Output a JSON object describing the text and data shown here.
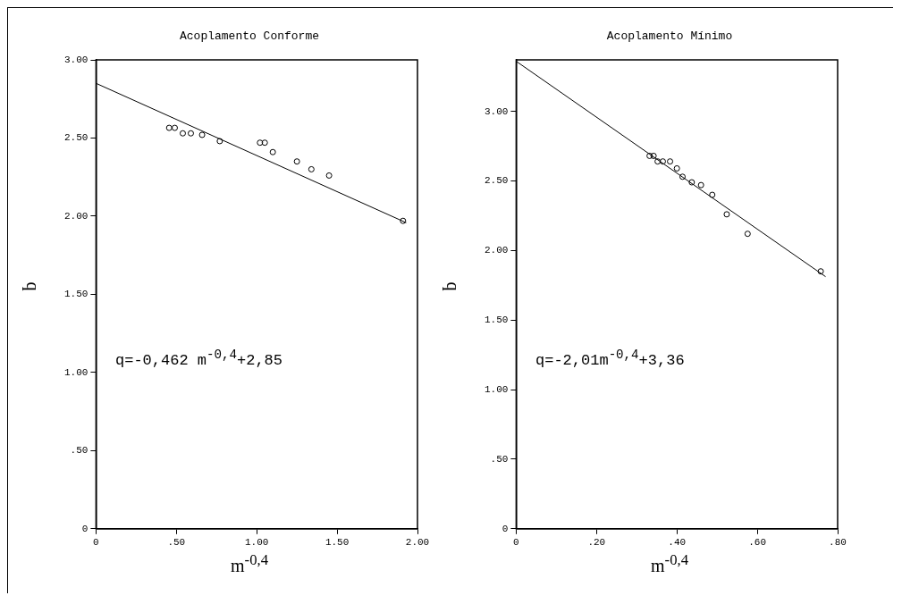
{
  "chart_data": [
    {
      "type": "scatter",
      "title": "Acoplamento Conforme",
      "xlabel": "m$^{-0,4}$",
      "ylabel": "q",
      "annotations": [
        "q=-0,462 m$^{-0,4}$+2,85"
      ],
      "xlim": [
        0,
        2
      ],
      "ylim": [
        0,
        3
      ],
      "xticks": [
        {
          "value": 0,
          "label": "0"
        },
        {
          "value": 0.5,
          "label": ".50"
        },
        {
          "value": 1,
          "label": "1.00"
        },
        {
          "value": 1.5,
          "label": "1.50"
        },
        {
          "value": 2,
          "label": "2.00"
        }
      ],
      "yticks": [
        {
          "value": 0,
          "label": "0"
        },
        {
          "value": 0.5,
          "label": ".50"
        },
        {
          "value": 1,
          "label": "1.00"
        },
        {
          "value": 1.5,
          "label": "1.50"
        },
        {
          "value": 2,
          "label": "2.00"
        },
        {
          "value": 2.5,
          "label": "2.50"
        },
        {
          "value": 3,
          "label": "3.00"
        }
      ],
      "series": [
        {
          "color": "#000000",
          "marker": "circle",
          "x": [
            0.455,
            0.49,
            0.54,
            0.59,
            0.66,
            0.77,
            1.02,
            1.05,
            1.1,
            1.25,
            1.34,
            1.45,
            1.91
          ],
          "values": [
            2.565,
            2.565,
            2.53,
            2.53,
            2.52,
            2.48,
            2.47,
            2.47,
            2.41,
            2.35,
            2.3,
            2.26,
            1.97
          ]
        },
        {
          "type": "line",
          "color": "#000000",
          "marker": "none",
          "x": [
            0,
            1.93
          ],
          "values": [
            2.85,
            1.958
          ]
        }
      ]
    },
    {
      "type": "scatter",
      "title": "Acoplamento Mínimo",
      "xlabel": "m$^{-0,4}$",
      "ylabel": "q",
      "annotations": [
        "q=-2,01m$^{-0,4}$+3,36"
      ],
      "xlim": [
        0,
        0.8
      ],
      "ylim": [
        0,
        3.37
      ],
      "xticks": [
        {
          "value": 0,
          "label": "0"
        },
        {
          "value": 0.2,
          "label": ".20"
        },
        {
          "value": 0.4,
          "label": ".40"
        },
        {
          "value": 0.6,
          "label": ".60"
        },
        {
          "value": 0.8,
          "label": ".80"
        }
      ],
      "yticks": [
        {
          "value": 0,
          "label": "0"
        },
        {
          "value": 0.5,
          "label": ".50"
        },
        {
          "value": 1,
          "label": "1.00"
        },
        {
          "value": 1.5,
          "label": "1.50"
        },
        {
          "value": 2,
          "label": "2.00"
        },
        {
          "value": 2.5,
          "label": "2.50"
        },
        {
          "value": 3,
          "label": "3.00"
        }
      ],
      "series": [
        {
          "color": "#000000",
          "marker": "circle",
          "x": [
            0.332,
            0.342,
            0.352,
            0.365,
            0.383,
            0.4,
            0.414,
            0.437,
            0.46,
            0.488,
            0.524,
            0.576,
            0.758
          ],
          "values": [
            2.68,
            2.68,
            2.64,
            2.64,
            2.64,
            2.59,
            2.53,
            2.49,
            2.47,
            2.4,
            2.26,
            2.12,
            1.85
          ]
        },
        {
          "type": "line",
          "color": "#000000",
          "marker": "none",
          "x": [
            0,
            0.77
          ],
          "values": [
            3.36,
            1.812
          ]
        }
      ]
    }
  ]
}
